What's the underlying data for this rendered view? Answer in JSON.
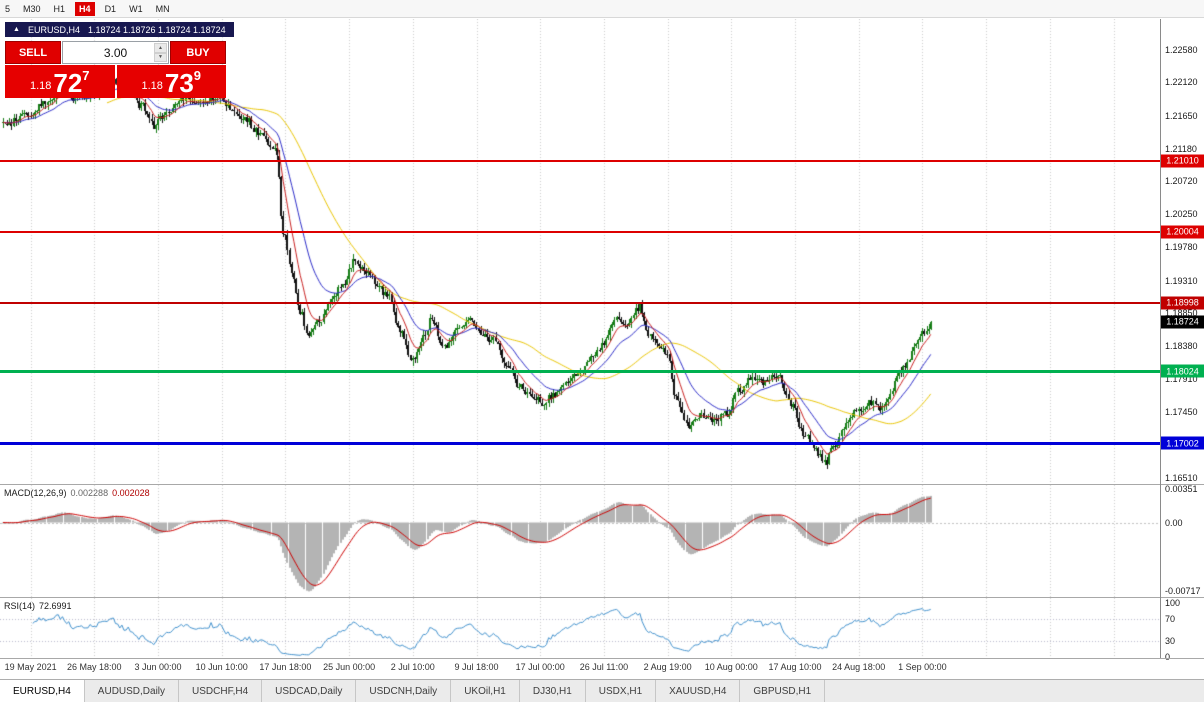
{
  "toolbar": {
    "items": [
      "5",
      "M30",
      "H1",
      "H4",
      "D1",
      "W1",
      "MN"
    ],
    "active": "H4"
  },
  "chart_title": {
    "arrow": "▲",
    "symbol": "EURUSD,H4",
    "ohlc": "1.18724 1.18726 1.18724 1.18724"
  },
  "trade_panel": {
    "sell_label": "SELL",
    "buy_label": "BUY",
    "volume": "3.00",
    "sell_price": {
      "prefix": "1.18",
      "big": "72",
      "sup": "7"
    },
    "buy_price": {
      "prefix": "1.18",
      "big": "73",
      "sup": "9"
    }
  },
  "price_axis": {
    "labels": [
      "1.22580",
      "1.22120",
      "1.21650",
      "1.21180",
      "1.20720",
      "1.20250",
      "1.19780",
      "1.19310",
      "1.18850",
      "1.18380",
      "1.17910",
      "1.17450",
      "1.16980",
      "1.16510"
    ]
  },
  "hlines": [
    {
      "price": "1.21010",
      "value": 1.2101,
      "color": "#dd0000",
      "thickness": 2
    },
    {
      "price": "1.20004",
      "value": 1.20004,
      "color": "#dd0000",
      "thickness": 2
    },
    {
      "price": "1.18998",
      "value": 1.18998,
      "color": "#c00000",
      "thickness": 2
    },
    {
      "price": "1.18024",
      "value": 1.18024,
      "color": "#00b050",
      "thickness": 3
    },
    {
      "price": "1.17002",
      "value": 1.17002,
      "color": "#0000d8",
      "thickness": 3
    }
  ],
  "current_price": {
    "label": "1.18724",
    "value": 1.18724,
    "bg": "#000000"
  },
  "indicators": {
    "macd": {
      "name": "MACD(12,26,9)",
      "value_main": "0.002288",
      "value_signal": "0.002028",
      "axis_labels": [
        "0.00351",
        "0.00",
        "-0.00717"
      ],
      "axis_max": 0.00351,
      "axis_min": -0.00717
    },
    "rsi": {
      "name": "RSI(14)",
      "value": "72.6991",
      "axis_labels": [
        "100",
        "70",
        "30",
        "0"
      ],
      "levels": [
        70,
        30
      ]
    }
  },
  "time_axis": [
    "19 May 2021",
    "26 May 18:00",
    "3 Jun 00:00",
    "10 Jun 10:00",
    "17 Jun 18:00",
    "25 Jun 00:00",
    "2 Jul 10:00",
    "9 Jul 18:00",
    "17 Jul 00:00",
    "26 Jul 11:00",
    "2 Aug 19:00",
    "10 Aug 00:00",
    "17 Aug 10:00",
    "24 Aug 18:00",
    "1 Sep 00:00"
  ],
  "tabs": {
    "items": [
      "EURUSD,H4",
      "AUDUSD,Daily",
      "USDCHF,H4",
      "USDCAD,Daily",
      "USDCNH,Daily",
      "UKOil,H1",
      "DJ30,H1",
      "USDX,H1",
      "XAUUSD,H4",
      "GBPUSD,H1"
    ],
    "active": "EURUSD,H4"
  },
  "chart_data": {
    "type": "candlestick",
    "symbol": "EURUSD",
    "timeframe": "H4",
    "visible_range": {
      "start": "19 May 2021",
      "end": "1 Sep 2021"
    },
    "price_axis_range": {
      "top": 1.2258,
      "bottom": 1.1651
    },
    "last_close": 1.18724,
    "waypoints": [
      [
        -13,
        1.2152
      ],
      [
        0,
        1.2168
      ],
      [
        8,
        1.2186
      ],
      [
        15,
        1.2202
      ],
      [
        22,
        1.2188
      ],
      [
        30,
        1.2198
      ],
      [
        38,
        1.2212
      ],
      [
        45,
        1.2204
      ],
      [
        52,
        1.218
      ],
      [
        58,
        1.215
      ],
      [
        63,
        1.2164
      ],
      [
        70,
        1.2188
      ],
      [
        80,
        1.2182
      ],
      [
        88,
        1.2192
      ],
      [
        95,
        1.2172
      ],
      [
        102,
        1.2158
      ],
      [
        108,
        1.2136
      ],
      [
        114,
        1.212
      ],
      [
        116,
        1.2108
      ],
      [
        119,
        1.2
      ],
      [
        123,
        1.1942
      ],
      [
        127,
        1.1888
      ],
      [
        131,
        1.1854
      ],
      [
        136,
        1.1872
      ],
      [
        142,
        1.1906
      ],
      [
        148,
        1.193
      ],
      [
        152,
        1.1956
      ],
      [
        157,
        1.1944
      ],
      [
        163,
        1.1928
      ],
      [
        168,
        1.191
      ],
      [
        174,
        1.186
      ],
      [
        180,
        1.1816
      ],
      [
        185,
        1.1852
      ],
      [
        189,
        1.1876
      ],
      [
        195,
        1.1836
      ],
      [
        201,
        1.1864
      ],
      [
        206,
        1.1874
      ],
      [
        212,
        1.1858
      ],
      [
        218,
        1.1846
      ],
      [
        224,
        1.1812
      ],
      [
        230,
        1.1782
      ],
      [
        236,
        1.1768
      ],
      [
        241,
        1.1756
      ],
      [
        247,
        1.1772
      ],
      [
        253,
        1.1784
      ],
      [
        258,
        1.1802
      ],
      [
        264,
        1.182
      ],
      [
        270,
        1.1844
      ],
      [
        276,
        1.188
      ],
      [
        281,
        1.187
      ],
      [
        287,
        1.1896
      ],
      [
        291,
        1.1852
      ],
      [
        296,
        1.184
      ],
      [
        300,
        1.1826
      ],
      [
        304,
        1.1764
      ],
      [
        310,
        1.1726
      ],
      [
        316,
        1.1742
      ],
      [
        322,
        1.1732
      ],
      [
        328,
        1.1744
      ],
      [
        334,
        1.1776
      ],
      [
        340,
        1.1792
      ],
      [
        346,
        1.1786
      ],
      [
        352,
        1.1798
      ],
      [
        358,
        1.1758
      ],
      [
        364,
        1.1714
      ],
      [
        370,
        1.169
      ],
      [
        374,
        1.1672
      ],
      [
        379,
        1.17
      ],
      [
        384,
        1.1728
      ],
      [
        390,
        1.1748
      ],
      [
        396,
        1.1758
      ],
      [
        401,
        1.175
      ],
      [
        405,
        1.1772
      ],
      [
        409,
        1.18
      ],
      [
        413,
        1.1814
      ],
      [
        417,
        1.1838
      ],
      [
        420,
        1.1854
      ],
      [
        424,
        1.1871
      ]
    ],
    "moving_averages": [
      {
        "period": 50,
        "color": "#e8c400"
      },
      {
        "period": 21,
        "color": "#2c2cc8"
      },
      {
        "period": 8,
        "color": "#c82020"
      }
    ],
    "macd": {
      "fast": 12,
      "slow": 26,
      "signal": 9,
      "hist_color": "#b4b4b4",
      "signal_color": "#cc0000"
    },
    "rsi": {
      "period": 14,
      "color": "#4090cc",
      "level_color": "#b8b8cc"
    },
    "colors": {
      "up": "#167d16",
      "down": "#101010",
      "grid": "#cccccc",
      "background": "#ffffff"
    }
  }
}
